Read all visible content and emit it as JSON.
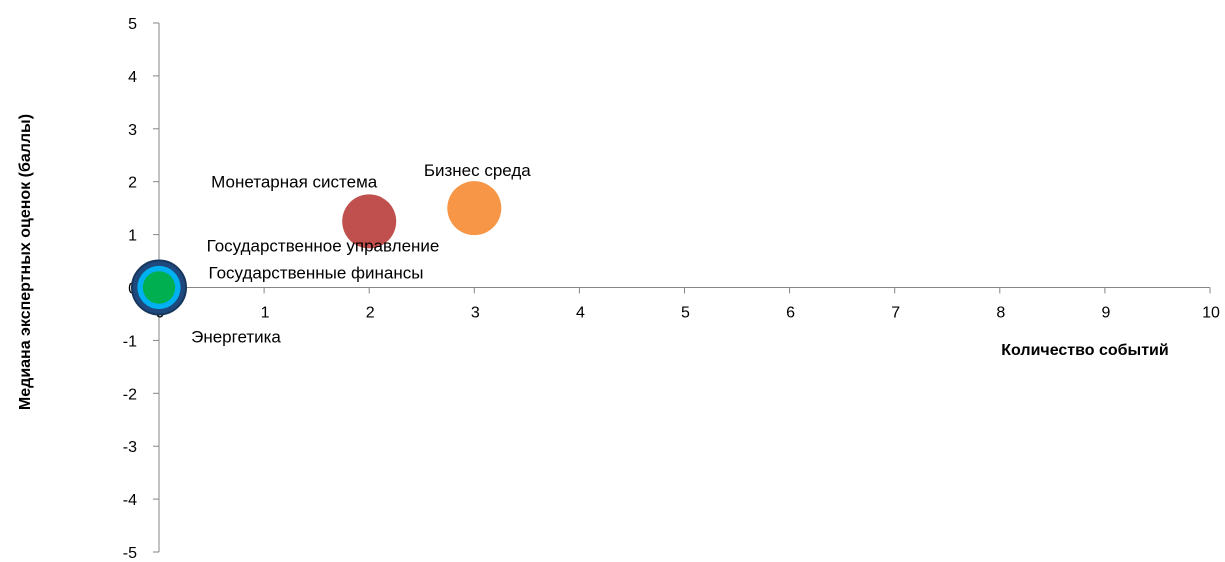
{
  "chart_data": {
    "type": "bubble",
    "xlabel": "Количество событий",
    "ylabel": "Медиана экспертных оценок (баллы)",
    "xlim": [
      0,
      10
    ],
    "ylim": [
      -5,
      5
    ],
    "x_ticks": [
      "0",
      "1",
      "2",
      "3",
      "4",
      "5",
      "6",
      "7",
      "8",
      "9",
      "10"
    ],
    "y_ticks": [
      "5",
      "4",
      "3",
      "2",
      "1",
      "0",
      "-1",
      "-2",
      "-3",
      "-4",
      "-5"
    ],
    "grid": false,
    "legend": "none",
    "series": [
      {
        "name": "Бизнес среда",
        "x": 3,
        "y": 1.5,
        "size": 1,
        "color": "#F79646",
        "label_pos": "above"
      },
      {
        "name": "Монетарная система",
        "x": 2,
        "y": 1.25,
        "size": 1,
        "color": "#C0504D",
        "label_pos": "above-left"
      },
      {
        "name": "Государственное управление",
        "x": 0,
        "y": 0,
        "size": 1,
        "color": "#1F497D",
        "label_pos": "above-right"
      },
      {
        "name": "Государственные финансы",
        "x": 0,
        "y": 0,
        "size": 0.8,
        "color": "#00B0F0",
        "label_pos": "right"
      },
      {
        "name": "Энергетика",
        "x": 0,
        "y": 0,
        "size": 0.6,
        "color": "#00B050",
        "label_pos": "below-right"
      }
    ]
  }
}
